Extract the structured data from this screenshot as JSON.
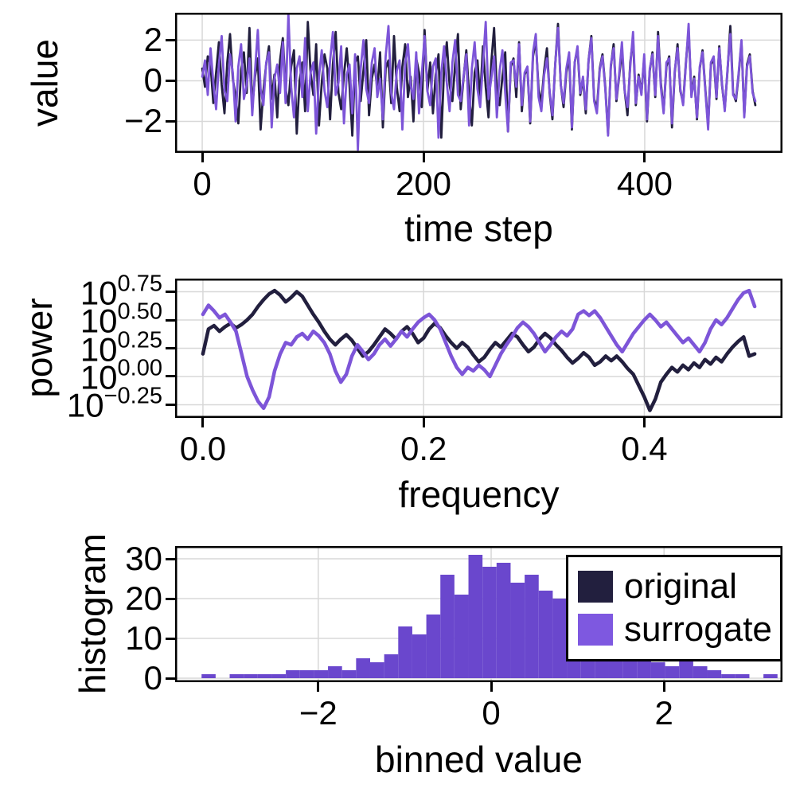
{
  "colors": {
    "original": "#221f3e",
    "surrogate": "#7d55d8",
    "histogram_fill": "#6a47cd",
    "grid": "#d8d8d8",
    "spine": "#000000",
    "background": "#ffffff"
  },
  "legend": {
    "entries": [
      {
        "label": "original",
        "color": "#221f3e"
      },
      {
        "label": "surrogate",
        "color": "#7e58e0"
      }
    ]
  },
  "chart_data": [
    {
      "type": "line",
      "xlabel": "time step",
      "ylabel": "value",
      "xlim": [
        -24.5,
        524.5
      ],
      "ylim": [
        -3.55,
        3.35
      ],
      "grid": true,
      "xticks": [
        0,
        200,
        400
      ],
      "xtick_labels": [
        "0",
        "200",
        "400"
      ],
      "yticks": [
        2,
        0,
        -2
      ],
      "ytick_labels": [
        "2",
        "0",
        "−2"
      ],
      "series": [
        {
          "name": "original",
          "color_key": "original",
          "x_start": 0,
          "x_end": 500,
          "line_width": 2.8,
          "values": [
            0.6,
            -0.3,
            1.2,
            0.8,
            -1.1,
            0.4,
            1.9,
            -0.2,
            -1.6,
            0.9,
            2.3,
            0.1,
            -0.8,
            -2.1,
            0.5,
            1.4,
            -0.6,
            2.6,
            -1.3,
            0.2,
            1.1,
            -2.4,
            -0.5,
            0.8,
            1.7,
            -0.9,
            0.3,
            -1.8,
            1.0,
            2.1,
            -0.4,
            -1.2,
            0.7,
            1.5,
            -2.6,
            0.0,
            0.9,
            -1.5,
            2.9,
            0.4,
            -0.7,
            1.8,
            -2.2,
            -0.1,
            1.3,
            0.6,
            -1.9,
            0.8,
            2.4,
            -0.6,
            -1.4,
            0.3,
            1.6,
            -0.2,
            -2.7,
            0.9,
            1.2,
            -1.0,
            0.5,
            2.0,
            -1.7,
            0.1,
            0.8,
            -0.4,
            1.4,
            -2.3,
            0.6,
            1.0,
            -1.1,
            2.2,
            -0.3,
            -1.5,
            0.7,
            1.8,
            -0.8,
            0.2,
            -2.0,
            1.1,
            0.4,
            -1.3,
            2.5,
            -0.5,
            0.9,
            -1.6,
            0.3,
            1.3,
            -2.8,
            0.6,
            1.9,
            -0.2,
            -1.0,
            0.8,
            2.3,
            -1.4,
            0.1,
            1.5,
            -0.7,
            -2.2,
            0.4,
            1.0,
            -0.9,
            1.7,
            -0.3,
            -1.8,
            0.9,
            2.6,
            -0.5,
            -1.2,
            0.2,
            1.4,
            -2.5,
            0.7,
            1.1,
            -0.8,
            1.9,
            -1.5,
            0.3,
            0.6,
            -2.1,
            1.2,
            2.0,
            -0.4,
            -1.1,
            0.5,
            1.6,
            -0.6,
            -1.9,
            0.8,
            2.8,
            -0.2,
            -1.3,
            0.4,
            1.2,
            -2.4,
            0.9,
            1.6,
            -0.7,
            0.1,
            -1.6,
            1.0,
            2.2,
            -0.9,
            -1.4,
            0.6,
            1.3,
            -0.3,
            -2.6,
            0.7,
            1.8,
            -1.0,
            0.2,
            1.5,
            -0.5,
            -1.7,
            0.9,
            2.1,
            -1.2,
            0.3,
            -0.6,
            1.1,
            -2.0,
            0.5,
            1.4,
            -0.8,
            2.4,
            -0.1,
            -1.5,
            0.7,
            1.2,
            -2.3,
            0.4,
            1.8,
            -0.5,
            -1.1,
            0.9,
            2.5,
            -0.7,
            0.2,
            -1.9,
            0.6,
            1.5,
            -0.4,
            -2.2,
            0.8,
            1.1,
            -0.9,
            1.7,
            -0.2,
            -1.4,
            0.5,
            2.7,
            -0.6,
            -1.0,
            0.3,
            1.9,
            -1.7,
            0.8,
            1.3,
            -0.5,
            -1.2
          ]
        },
        {
          "name": "surrogate",
          "color_key": "surrogate",
          "x_start": 0,
          "x_end": 500,
          "line_width": 2.8,
          "values": [
            0.2,
            1.0,
            -0.7,
            1.6,
            -0.1,
            -1.4,
            0.8,
            2.2,
            -0.5,
            -1.0,
            1.3,
            0.4,
            -2.0,
            0.7,
            1.8,
            -0.9,
            -0.2,
            1.1,
            -1.7,
            0.5,
            2.5,
            -0.4,
            -1.2,
            0.9,
            1.4,
            -2.3,
            0.1,
            0.8,
            -0.6,
            1.9,
            -1.1,
            3.3,
            -0.3,
            -1.8,
            0.6,
            1.2,
            -0.8,
            2.1,
            -1.5,
            0.4,
            0.9,
            -2.6,
            0.2,
            1.5,
            -0.5,
            -1.3,
            1.0,
            2.4,
            -0.7,
            -0.1,
            1.7,
            -2.1,
            0.3,
            0.8,
            -1.6,
            1.3,
            -3.4,
            0.6,
            2.0,
            -0.4,
            -1.1,
            0.9,
            1.6,
            -0.8,
            0.1,
            -1.9,
            1.2,
            2.7,
            -0.6,
            -1.4,
            0.5,
            1.0,
            -2.4,
            0.8,
            1.8,
            -0.2,
            -0.9,
            1.4,
            -1.6,
            0.3,
            2.2,
            -0.5,
            -1.2,
            0.7,
            1.1,
            -2.8,
            0.4,
            1.7,
            -0.1,
            -1.5,
            0.9,
            2.0,
            -0.7,
            -1.0,
            0.2,
            1.3,
            -2.2,
            0.6,
            1.9,
            -0.4,
            -1.3,
            0.8,
            2.9,
            -0.9,
            0.1,
            1.2,
            -1.8,
            0.5,
            1.5,
            -0.6,
            -2.5,
            0.9,
            1.0,
            -0.3,
            1.8,
            -1.2,
            0.4,
            0.7,
            -2.0,
            1.4,
            2.3,
            -0.8,
            -1.5,
            0.3,
            1.1,
            -0.5,
            -1.7,
            0.8,
            2.6,
            -0.2,
            -1.1,
            0.6,
            1.4,
            -2.3,
            0.9,
            1.7,
            -0.6,
            0.2,
            -1.4,
            1.0,
            2.1,
            -1.0,
            -1.6,
            0.5,
            1.2,
            -0.4,
            -2.7,
            0.8,
            1.6,
            -0.9,
            0.3,
            1.9,
            -0.5,
            -1.3,
            0.7,
            2.4,
            -1.1,
            0.2,
            -0.7,
            1.3,
            -1.9,
            0.6,
            1.3,
            -0.7,
            2.2,
            -0.3,
            -1.6,
            0.9,
            1.1,
            -2.1,
            0.5,
            1.6,
            -0.4,
            -1.2,
            0.8,
            2.8,
            -0.8,
            0.1,
            -1.8,
            0.7,
            1.4,
            -0.5,
            -2.4,
            0.9,
            1.2,
            -0.8,
            1.6,
            -0.1,
            -1.5,
            0.6,
            2.3,
            -0.7,
            -0.9,
            0.4,
            2.0,
            -1.8,
            0.7,
            1.2,
            -0.6,
            -1.0
          ]
        }
      ]
    },
    {
      "type": "line",
      "xlabel": "frequency",
      "ylabel": "power",
      "yscale": "log10",
      "values_are": "log10(power)",
      "xlim": [
        -0.0252,
        0.5252
      ],
      "ylim": [
        -0.3662,
        0.8662
      ],
      "grid": true,
      "xticks": [
        0.0,
        0.2,
        0.4
      ],
      "xtick_labels": [
        "0.0",
        "0.2",
        "0.4"
      ],
      "yticks": [
        0.75,
        0.5,
        0.25,
        0.0,
        -0.25
      ],
      "ytick_labels": [
        {
          "base": "10",
          "exp": "0.75"
        },
        {
          "base": "10",
          "exp": "0.50"
        },
        {
          "base": "10",
          "exp": "0.25"
        },
        {
          "base": "10",
          "exp": "0.00"
        },
        {
          "base": "10",
          "exp": "−0.25"
        }
      ],
      "series": [
        {
          "name": "original",
          "color_key": "original",
          "x_start": 0,
          "x_end": 0.5,
          "line_width": 4.5,
          "values": [
            0.2,
            0.42,
            0.45,
            0.4,
            0.44,
            0.47,
            0.43,
            0.46,
            0.5,
            0.55,
            0.62,
            0.68,
            0.73,
            0.76,
            0.72,
            0.66,
            0.7,
            0.75,
            0.71,
            0.63,
            0.55,
            0.48,
            0.4,
            0.33,
            0.28,
            0.33,
            0.37,
            0.32,
            0.25,
            0.18,
            0.22,
            0.28,
            0.35,
            0.42,
            0.38,
            0.33,
            0.4,
            0.44,
            0.38,
            0.3,
            0.34,
            0.42,
            0.47,
            0.43,
            0.36,
            0.3,
            0.25,
            0.3,
            0.26,
            0.19,
            0.13,
            0.17,
            0.24,
            0.3,
            0.26,
            0.32,
            0.38,
            0.35,
            0.28,
            0.22,
            0.26,
            0.33,
            0.38,
            0.34,
            0.28,
            0.23,
            0.17,
            0.12,
            0.16,
            0.21,
            0.17,
            0.1,
            0.13,
            0.18,
            0.14,
            0.18,
            0.13,
            0.07,
            0.02,
            -0.08,
            -0.18,
            -0.3,
            -0.2,
            -0.05,
            0.02,
            0.08,
            0.04,
            0.1,
            0.06,
            0.12,
            0.08,
            0.15,
            0.11,
            0.17,
            0.13,
            0.2,
            0.26,
            0.31,
            0.35,
            0.18,
            0.2
          ]
        },
        {
          "name": "surrogate",
          "color_key": "surrogate",
          "x_start": 0,
          "x_end": 0.5,
          "line_width": 4.5,
          "values": [
            0.55,
            0.63,
            0.58,
            0.52,
            0.55,
            0.48,
            0.4,
            0.2,
            0.0,
            -0.12,
            -0.22,
            -0.28,
            -0.18,
            0.05,
            0.2,
            0.3,
            0.28,
            0.35,
            0.38,
            0.33,
            0.4,
            0.36,
            0.3,
            0.2,
            0.05,
            -0.05,
            0.02,
            0.18,
            0.28,
            0.22,
            0.15,
            0.2,
            0.28,
            0.33,
            0.27,
            0.33,
            0.4,
            0.35,
            0.42,
            0.48,
            0.52,
            0.55,
            0.5,
            0.42,
            0.3,
            0.18,
            0.08,
            0.02,
            0.08,
            0.05,
            0.1,
            0.06,
            0.0,
            0.1,
            0.2,
            0.28,
            0.35,
            0.43,
            0.48,
            0.44,
            0.38,
            0.3,
            0.22,
            0.28,
            0.35,
            0.4,
            0.36,
            0.42,
            0.55,
            0.58,
            0.54,
            0.58,
            0.52,
            0.44,
            0.36,
            0.28,
            0.22,
            0.3,
            0.38,
            0.44,
            0.5,
            0.55,
            0.5,
            0.44,
            0.48,
            0.42,
            0.36,
            0.3,
            0.34,
            0.28,
            0.22,
            0.3,
            0.42,
            0.5,
            0.46,
            0.52,
            0.6,
            0.68,
            0.74,
            0.76,
            0.62
          ]
        }
      ]
    },
    {
      "type": "histogram",
      "xlabel": "binned value",
      "ylabel": "histogram",
      "xlim": [
        -3.656,
        3.37
      ],
      "ylim": [
        -1.0,
        33.2
      ],
      "grid": true,
      "xticks": [
        -2,
        0,
        2
      ],
      "xtick_labels": [
        "−2",
        "0",
        "2"
      ],
      "yticks": [
        0,
        10,
        20,
        30
      ],
      "ytick_labels": [
        "0",
        "10",
        "20",
        "30"
      ],
      "bins": {
        "start": -3.35,
        "width": 0.1625,
        "counts": [
          1,
          0,
          1,
          1,
          1,
          1,
          2,
          2,
          2,
          3,
          2,
          5,
          4,
          6,
          13,
          11,
          16,
          26,
          21,
          31,
          28,
          29,
          24,
          26,
          22,
          20,
          14,
          12,
          9,
          8,
          7,
          5,
          4,
          3,
          5,
          3,
          2,
          1,
          1,
          0,
          1
        ]
      },
      "note": "original and surrogate histograms overlap exactly; combined fill appears purple"
    }
  ]
}
